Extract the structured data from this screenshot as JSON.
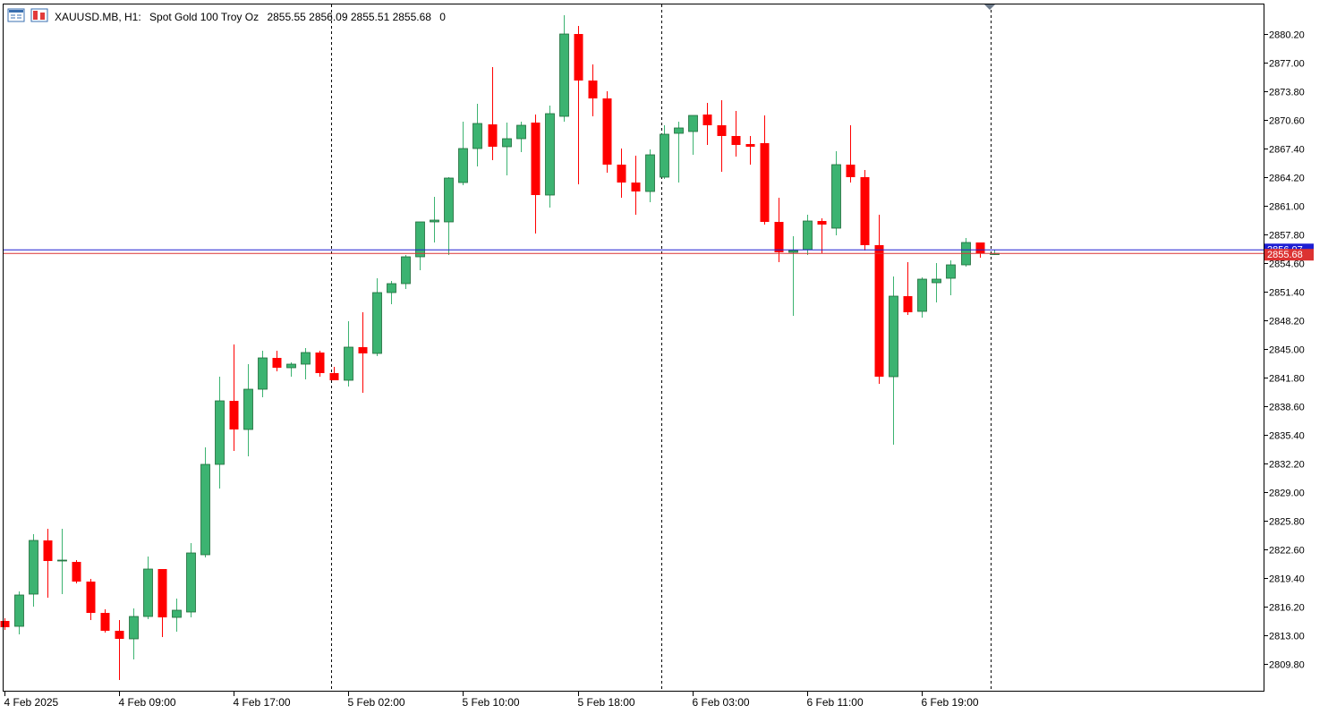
{
  "header": {
    "symbol_period": "XAUUSD.MB, H1:",
    "description": "Spot Gold 100 Troy Oz",
    "ohlc": "2855.55 2856.09 2855.51 2855.68",
    "volume": "0"
  },
  "price_tags": {
    "ask": "2856.07",
    "bid": "2855.68"
  },
  "colors": {
    "bull": "#3cb371",
    "bear": "#ff0000",
    "bid_line": "#dc3232",
    "ask_line": "#1e1ed2",
    "axis": "#000000",
    "grid_separator": "#000000"
  },
  "chart_data": {
    "type": "candlestick",
    "timeframe": "H1",
    "ylim": [
      2807.0,
      2884.0
    ],
    "y_ticks": [
      2809.8,
      2813.0,
      2816.2,
      2819.4,
      2822.6,
      2825.8,
      2829.0,
      2832.2,
      2835.4,
      2838.6,
      2841.8,
      2845.0,
      2848.2,
      2851.4,
      2854.6,
      2857.8,
      2861.0,
      2864.2,
      2867.4,
      2870.6,
      2873.8,
      2877.0,
      2880.2
    ],
    "y_tick_labels": [
      "2809.80",
      "2813.00",
      "2816.20",
      "2819.40",
      "2822.60",
      "2825.80",
      "2829.00",
      "2832.20",
      "2835.40",
      "2838.60",
      "2841.80",
      "2845.00",
      "2848.20",
      "2851.40",
      "2854.60",
      "2857.80",
      "2861.00",
      "2864.20",
      "2867.40",
      "2870.60",
      "2873.80",
      "2877.00",
      "2880.20"
    ],
    "x_labels": [
      {
        "index": 0,
        "label": "4 Feb 2025"
      },
      {
        "index": 8,
        "label": "4 Feb 09:00"
      },
      {
        "index": 16,
        "label": "4 Feb 17:00"
      },
      {
        "index": 24,
        "label": "5 Feb 02:00"
      },
      {
        "index": 32,
        "label": "5 Feb 10:00"
      },
      {
        "index": 40,
        "label": "5 Feb 18:00"
      },
      {
        "index": 48,
        "label": "6 Feb 03:00"
      },
      {
        "index": 56,
        "label": "6 Feb 11:00"
      },
      {
        "index": 64,
        "label": "6 Feb 19:00"
      }
    ],
    "day_separators": [
      22.8,
      45.8,
      68.8
    ],
    "bid": 2855.68,
    "ask": 2856.07,
    "candles": [
      [
        2814.6,
        2814.9,
        2813.6,
        2813.9
      ],
      [
        2814.0,
        2817.9,
        2813.1,
        2817.5
      ],
      [
        2817.6,
        2824.3,
        2816.2,
        2823.6
      ],
      [
        2823.6,
        2824.9,
        2817.2,
        2821.3
      ],
      [
        2821.3,
        2824.9,
        2817.6,
        2821.4
      ],
      [
        2821.2,
        2821.4,
        2818.8,
        2819.0
      ],
      [
        2819.0,
        2819.3,
        2814.7,
        2815.5
      ],
      [
        2815.5,
        2815.9,
        2813.3,
        2813.5
      ],
      [
        2813.5,
        2814.7,
        2808.0,
        2812.6
      ],
      [
        2812.6,
        2816.0,
        2810.3,
        2815.1
      ],
      [
        2815.1,
        2821.8,
        2814.8,
        2820.4
      ],
      [
        2820.4,
        2820.4,
        2812.8,
        2815.0
      ],
      [
        2815.0,
        2817.1,
        2813.4,
        2815.8
      ],
      [
        2815.6,
        2823.3,
        2815.0,
        2822.2
      ],
      [
        2822.0,
        2834.0,
        2821.7,
        2832.1
      ],
      [
        2832.1,
        2841.9,
        2829.4,
        2839.2
      ],
      [
        2839.2,
        2845.5,
        2833.6,
        2836.0
      ],
      [
        2836.0,
        2843.3,
        2833.0,
        2840.5
      ],
      [
        2840.5,
        2844.8,
        2839.6,
        2844.0
      ],
      [
        2844.0,
        2844.8,
        2842.5,
        2842.9
      ],
      [
        2842.9,
        2843.5,
        2841.9,
        2843.3
      ],
      [
        2843.3,
        2845.1,
        2841.6,
        2844.6
      ],
      [
        2844.6,
        2844.8,
        2841.9,
        2842.3
      ],
      [
        2842.3,
        2843.0,
        2841.5,
        2841.5
      ],
      [
        2841.5,
        2848.1,
        2840.8,
        2845.2
      ],
      [
        2845.2,
        2849.1,
        2840.1,
        2844.5
      ],
      [
        2844.5,
        2852.9,
        2844.2,
        2851.3
      ],
      [
        2851.3,
        2852.6,
        2850.0,
        2852.3
      ],
      [
        2852.3,
        2855.5,
        2851.7,
        2855.3
      ],
      [
        2855.3,
        2859.0,
        2853.8,
        2859.2
      ],
      [
        2859.2,
        2862.0,
        2856.9,
        2859.4
      ],
      [
        2859.2,
        2864.2,
        2855.5,
        2864.1
      ],
      [
        2863.6,
        2870.4,
        2863.3,
        2867.4
      ],
      [
        2867.4,
        2872.4,
        2865.4,
        2870.2
      ],
      [
        2870.1,
        2876.5,
        2866.1,
        2867.6
      ],
      [
        2867.6,
        2870.3,
        2864.4,
        2868.5
      ],
      [
        2868.5,
        2870.4,
        2867.0,
        2870.0
      ],
      [
        2870.3,
        2871.2,
        2857.9,
        2862.2
      ],
      [
        2862.2,
        2872.2,
        2860.8,
        2871.3
      ],
      [
        2871.0,
        2882.3,
        2870.4,
        2880.2
      ],
      [
        2880.2,
        2881.1,
        2863.4,
        2875.0
      ],
      [
        2875.0,
        2876.8,
        2871.0,
        2873.0
      ],
      [
        2873.0,
        2873.8,
        2864.7,
        2865.6
      ],
      [
        2865.6,
        2867.4,
        2861.9,
        2863.6
      ],
      [
        2863.6,
        2866.6,
        2860.0,
        2862.6
      ],
      [
        2862.6,
        2867.3,
        2861.4,
        2866.7
      ],
      [
        2864.2,
        2870.0,
        2864.0,
        2869.0
      ],
      [
        2869.1,
        2870.4,
        2863.6,
        2869.7
      ],
      [
        2869.3,
        2871.1,
        2866.7,
        2871.1
      ],
      [
        2871.2,
        2872.5,
        2867.8,
        2870.0
      ],
      [
        2870.0,
        2872.8,
        2864.8,
        2868.8
      ],
      [
        2868.8,
        2871.6,
        2866.5,
        2867.8
      ],
      [
        2867.9,
        2868.8,
        2865.6,
        2867.6
      ],
      [
        2868.0,
        2871.1,
        2858.9,
        2859.2
      ],
      [
        2859.2,
        2861.9,
        2854.7,
        2855.8
      ],
      [
        2855.8,
        2857.6,
        2848.7,
        2856.0
      ],
      [
        2856.1,
        2860.0,
        2855.5,
        2859.3
      ],
      [
        2859.3,
        2859.6,
        2855.7,
        2858.9
      ],
      [
        2858.5,
        2867.1,
        2857.7,
        2865.6
      ],
      [
        2865.6,
        2870.0,
        2863.6,
        2864.2
      ],
      [
        2864.2,
        2865.0,
        2856.0,
        2856.6
      ],
      [
        2856.6,
        2860.0,
        2841.1,
        2841.9
      ],
      [
        2841.9,
        2853.1,
        2834.3,
        2850.9
      ],
      [
        2850.9,
        2854.7,
        2848.8,
        2849.1
      ],
      [
        2849.2,
        2853.0,
        2848.5,
        2852.8
      ],
      [
        2852.4,
        2854.6,
        2850.2,
        2852.8
      ],
      [
        2852.9,
        2854.9,
        2851.0,
        2854.4
      ],
      [
        2854.4,
        2857.4,
        2854.2,
        2856.9
      ],
      [
        2856.9,
        2856.9,
        2855.2,
        2855.7
      ],
      [
        2855.55,
        2856.09,
        2855.51,
        2855.68
      ]
    ]
  }
}
